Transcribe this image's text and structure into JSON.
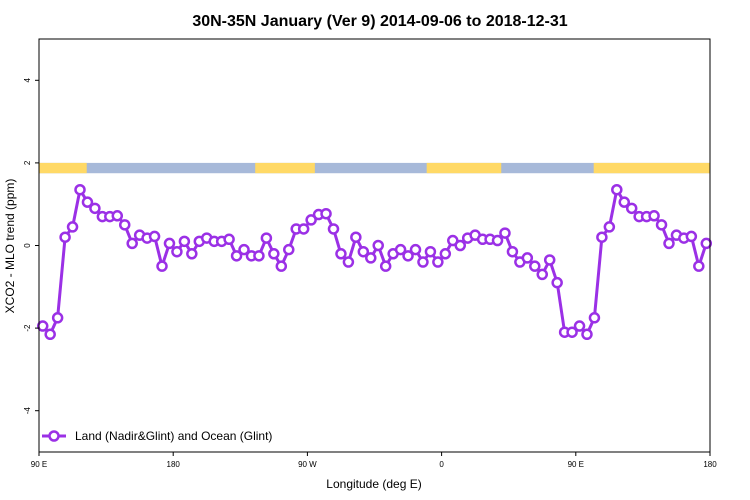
{
  "chart_data": {
    "type": "line",
    "title": "30N-35N January (Ver 9)   2014-09-06 to 2018-12-31",
    "xlabel": "Longitude (deg E)",
    "ylabel": "XCO2 - MLO trend (ppm)",
    "xlim": [
      90,
      540
    ],
    "ylim": [
      -5,
      5
    ],
    "grid": false,
    "x_ticks": [
      {
        "value": 90,
        "label": "90 E"
      },
      {
        "value": 180,
        "label": "180"
      },
      {
        "value": 270,
        "label": "90 W"
      },
      {
        "value": 360,
        "label": "0"
      },
      {
        "value": 450,
        "label": "90 E"
      },
      {
        "value": 540,
        "label": "180"
      }
    ],
    "y_ticks": [
      {
        "value": -4,
        "label": "-4"
      },
      {
        "value": -2,
        "label": "-2"
      },
      {
        "value": 0,
        "label": "0"
      },
      {
        "value": 2,
        "label": "2"
      },
      {
        "value": 4,
        "label": "4"
      }
    ],
    "land_ocean_strip": {
      "y_range": [
        1.75,
        2.0
      ],
      "land_color": "#FFD966",
      "ocean_color": "#A7B9D9",
      "land_segments": [
        [
          90,
          122
        ],
        [
          235,
          275
        ],
        [
          350,
          400
        ],
        [
          462,
          545
        ]
      ]
    },
    "legend": {
      "position": "bottom-left"
    },
    "series": [
      {
        "name": "Land (Nadir&Glint) and Ocean (Glint)",
        "color": "#9B30E6",
        "x": [
          92.5,
          97.5,
          102.5,
          107.5,
          112.5,
          117.5,
          122.5,
          127.5,
          132.5,
          137.5,
          142.5,
          147.5,
          152.5,
          157.5,
          162.5,
          167.5,
          172.5,
          177.5,
          182.5,
          187.5,
          192.5,
          197.5,
          202.5,
          207.5,
          212.5,
          217.5,
          222.5,
          227.5,
          232.5,
          237.5,
          242.5,
          247.5,
          252.5,
          257.5,
          262.5,
          267.5,
          272.5,
          277.5,
          282.5,
          287.5,
          292.5,
          297.5,
          302.5,
          307.5,
          312.5,
          317.5,
          322.5,
          327.5,
          332.5,
          337.5,
          342.5,
          347.5,
          352.5,
          357.5,
          362.5,
          367.5,
          372.5,
          377.5,
          382.5,
          387.5,
          392.5,
          397.5,
          402.5,
          407.5,
          412.5,
          417.5,
          422.5,
          427.5,
          432.5,
          437.5,
          442.5,
          447.5,
          452.5,
          457.5,
          462.5,
          467.5,
          472.5,
          477.5,
          482.5,
          487.5,
          492.5,
          497.5,
          502.5,
          507.5,
          512.5,
          517.5,
          522.5,
          527.5,
          532.5,
          537.5
        ],
        "values": [
          -1.95,
          -2.15,
          -1.75,
          0.2,
          0.45,
          1.35,
          1.05,
          0.9,
          0.7,
          0.7,
          0.72,
          0.5,
          0.05,
          0.25,
          0.18,
          0.22,
          -0.5,
          0.05,
          -0.15,
          0.1,
          -0.2,
          0.1,
          0.18,
          0.1,
          0.1,
          0.15,
          -0.25,
          -0.1,
          -0.25,
          -0.25,
          0.18,
          -0.2,
          -0.5,
          -0.1,
          0.4,
          0.4,
          0.62,
          0.75,
          0.77,
          0.4,
          -0.2,
          -0.4,
          0.2,
          -0.15,
          -0.3,
          0.0,
          -0.5,
          -0.2,
          -0.1,
          -0.25,
          -0.1,
          -0.4,
          -0.15,
          -0.4,
          -0.2,
          0.12,
          0.0,
          0.18,
          0.25,
          0.15,
          0.15,
          0.12,
          0.3,
          -0.15,
          -0.4,
          -0.3,
          -0.5,
          -0.7,
          -0.35,
          -0.9,
          -2.1,
          -2.1,
          -1.95,
          -2.15,
          -1.75,
          0.2,
          0.45,
          1.35,
          1.05,
          0.9,
          0.7,
          0.7,
          0.72,
          0.5,
          0.05,
          0.25,
          0.18,
          0.22,
          -0.5,
          0.05
        ]
      }
    ]
  }
}
